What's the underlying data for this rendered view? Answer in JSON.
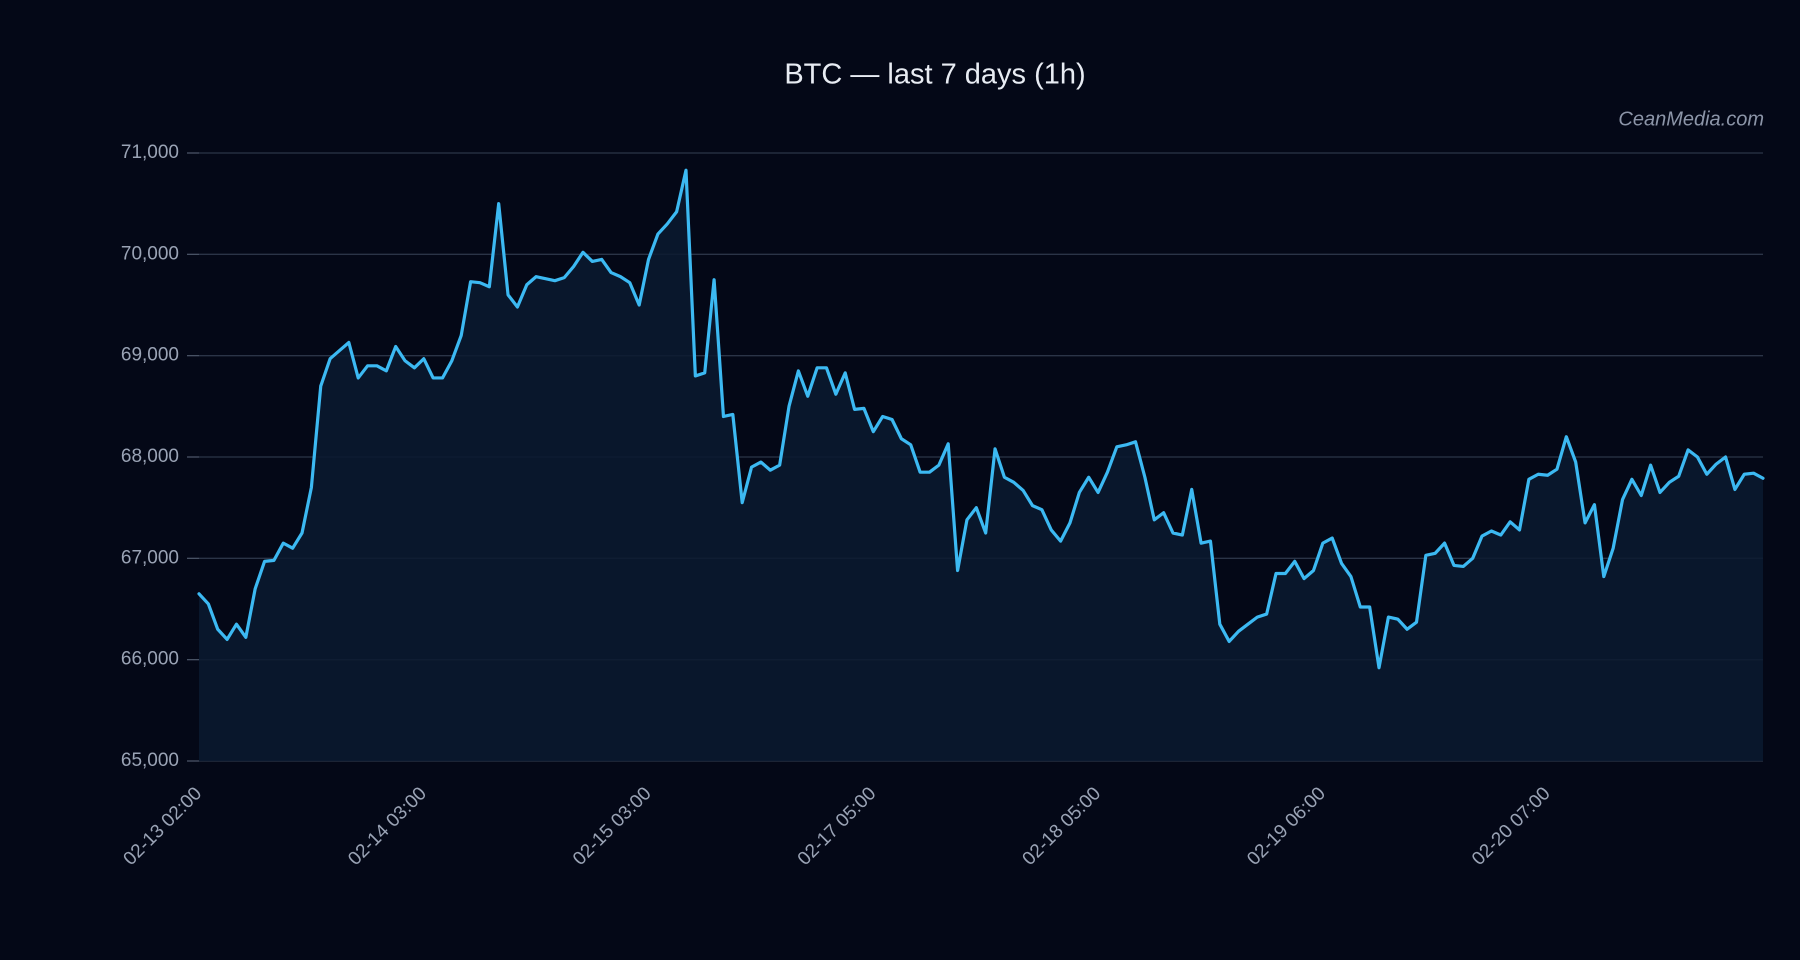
{
  "chart_data": {
    "type": "area-line",
    "title": "BTC — last 7 days (1h)",
    "watermark": "CeanMedia.com",
    "color": "#3cb9f2",
    "grid": true,
    "categories": [
      "02-13 02:00",
      null,
      null,
      null,
      null,
      null,
      null,
      null,
      null,
      null,
      null,
      null,
      null,
      null,
      null,
      null,
      null,
      null,
      null,
      null,
      null,
      null,
      null,
      null,
      "02-14 03:00",
      null,
      null,
      null,
      null,
      null,
      null,
      null,
      null,
      null,
      null,
      null,
      null,
      null,
      null,
      null,
      null,
      null,
      null,
      null,
      null,
      null,
      null,
      null,
      "02-15 03:00",
      null,
      null,
      null,
      null,
      null,
      null,
      null,
      null,
      null,
      null,
      null,
      null,
      null,
      null,
      null,
      null,
      null,
      null,
      null,
      null,
      null,
      null,
      null,
      "02-17 05:00",
      null,
      null,
      null,
      null,
      null,
      null,
      null,
      null,
      null,
      null,
      null,
      null,
      null,
      null,
      null,
      null,
      null,
      null,
      null,
      null,
      null,
      null,
      null,
      "02-18 05:00",
      null,
      null,
      null,
      null,
      null,
      null,
      null,
      null,
      null,
      null,
      null,
      null,
      null,
      null,
      null,
      null,
      null,
      null,
      null,
      null,
      null,
      null,
      null,
      "02-19 06:00",
      null,
      null,
      null,
      null,
      null,
      null,
      null,
      null,
      null,
      null,
      null,
      null,
      null,
      null,
      null,
      null,
      null,
      null,
      null,
      null,
      null,
      null,
      null,
      "02-20 07:00",
      null,
      null,
      null,
      null,
      null,
      null,
      null,
      null,
      null,
      null,
      null,
      null,
      null,
      null,
      null,
      null,
      null,
      null,
      null,
      null,
      null,
      null,
      null
    ],
    "values": [
      66650,
      66550,
      66300,
      66200,
      66350,
      66220,
      66700,
      66970,
      66980,
      67150,
      67100,
      67250,
      67700,
      68700,
      68970,
      69050,
      69130,
      68780,
      68900,
      68900,
      68850,
      69090,
      68950,
      68880,
      68970,
      68780,
      68780,
      68950,
      69200,
      69730,
      69720,
      69680,
      70500,
      69600,
      69480,
      69700,
      69780,
      69760,
      69740,
      69770,
      69880,
      70020,
      69930,
      69950,
      69820,
      69780,
      69720,
      69500,
      69950,
      70200,
      70300,
      70420,
      70830,
      68800,
      68830,
      69750,
      68400,
      68420,
      67550,
      67900,
      67950,
      67870,
      67920,
      68500,
      68850,
      68600,
      68880,
      68880,
      68620,
      68830,
      68470,
      68480,
      68250,
      68400,
      68370,
      68180,
      68120,
      67850,
      67850,
      67920,
      68130,
      66880,
      67380,
      67500,
      67250,
      68080,
      67800,
      67750,
      67670,
      67520,
      67480,
      67280,
      67170,
      67350,
      67650,
      67800,
      67650,
      67850,
      68100,
      68120,
      68150,
      67800,
      67380,
      67450,
      67250,
      67230,
      67680,
      67150,
      67170,
      66350,
      66180,
      66280,
      66350,
      66420,
      66450,
      66850,
      66850,
      66970,
      66800,
      66880,
      67150,
      67200,
      66950,
      66820,
      66520,
      66520,
      65920,
      66420,
      66400,
      66300,
      66370,
      67030,
      67050,
      67150,
      66930,
      66920,
      67000,
      67220,
      67270,
      67230,
      67360,
      67280,
      67780,
      67830,
      67820,
      67880,
      68200,
      67950,
      67350,
      67530,
      66820,
      67100,
      67580,
      67780,
      67620,
      67920,
      67650,
      67750,
      67810,
      68070,
      68000,
      67830,
      67930,
      68000,
      67680,
      67830,
      67840,
      67790
    ],
    "ylim": [
      65000,
      71000
    ],
    "yticks": [
      {
        "value": 65000,
        "label": "65,000"
      },
      {
        "value": 66000,
        "label": "66,000"
      },
      {
        "value": 67000,
        "label": "67,000"
      },
      {
        "value": 68000,
        "label": "68,000"
      },
      {
        "value": 69000,
        "label": "69,000"
      },
      {
        "value": 70000,
        "label": "70,000"
      },
      {
        "value": 71000,
        "label": "71,000"
      }
    ]
  }
}
